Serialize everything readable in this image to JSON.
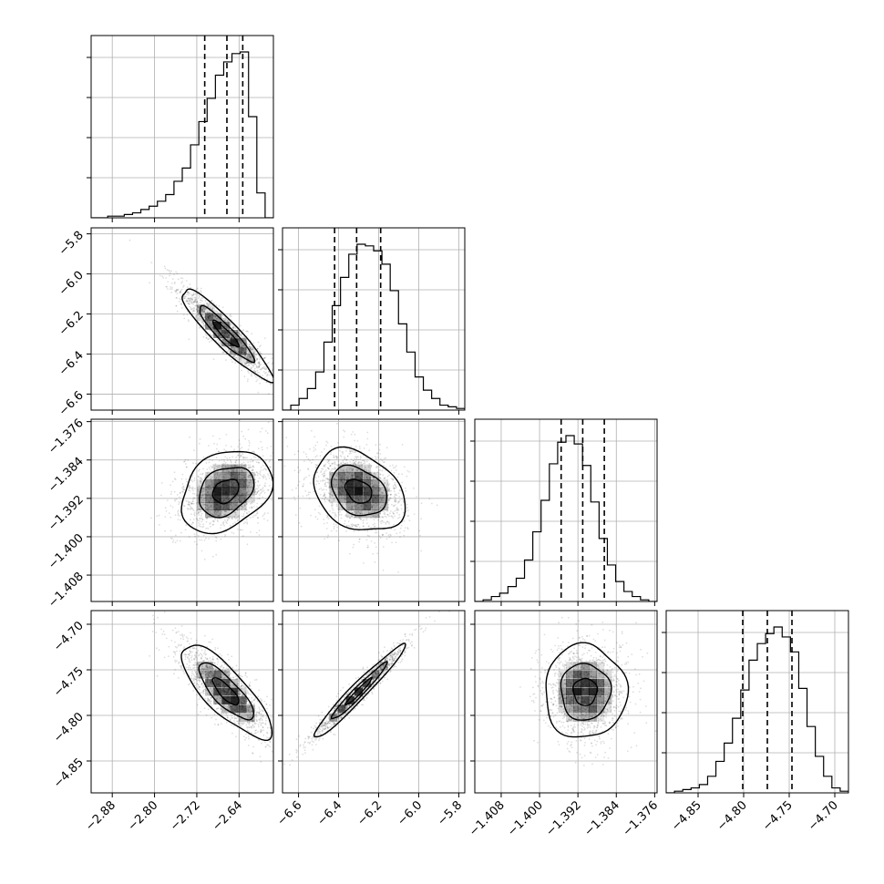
{
  "chart_data": {
    "type": "corner",
    "grid": true,
    "hist_quantile_lines": "dashed",
    "parameters": [
      {
        "index": 0,
        "range": [
          -2.92,
          -2.575
        ],
        "ticks": [
          -2.88,
          -2.8,
          -2.72,
          -2.64
        ],
        "tick_labels": [
          "−2.88",
          "−2.80",
          "−2.72",
          "−2.64"
        ],
        "quantiles": [
          -2.705,
          -2.663,
          -2.633
        ],
        "histogram": [
          0,
          0,
          0.01,
          0.01,
          0.02,
          0.03,
          0.05,
          0.07,
          0.1,
          0.14,
          0.22,
          0.3,
          0.44,
          0.58,
          0.72,
          0.86,
          0.94,
          0.99,
          1.0,
          0.61,
          0.15,
          0
        ]
      },
      {
        "index": 1,
        "range": [
          -6.68,
          -5.77
        ],
        "ticks": [
          -6.6,
          -6.4,
          -6.2,
          -6.0,
          -5.8
        ],
        "tick_labels": [
          "−6.6",
          "−6.4",
          "−6.2",
          "−6.0",
          "−5.8"
        ],
        "quantiles": [
          -6.42,
          -6.31,
          -6.19
        ],
        "histogram": [
          0,
          0.03,
          0.07,
          0.13,
          0.23,
          0.41,
          0.63,
          0.8,
          0.94,
          1.0,
          0.99,
          0.96,
          0.88,
          0.72,
          0.52,
          0.35,
          0.2,
          0.12,
          0.07,
          0.03,
          0.02,
          0.01
        ]
      },
      {
        "index": 2,
        "range": [
          -1.4135,
          -1.3755
        ],
        "ticks": [
          -1.408,
          -1.4,
          -1.392,
          -1.384,
          -1.376
        ],
        "tick_labels": [
          "−1.408",
          "−1.400",
          "−1.392",
          "−1.384",
          "−1.376"
        ],
        "quantiles": [
          -1.3955,
          -1.391,
          -1.3865
        ],
        "histogram": [
          0,
          0.01,
          0.03,
          0.05,
          0.09,
          0.14,
          0.25,
          0.42,
          0.61,
          0.83,
          0.96,
          1.0,
          0.95,
          0.82,
          0.6,
          0.38,
          0.22,
          0.12,
          0.06,
          0.03,
          0.01,
          0
        ]
      },
      {
        "index": 3,
        "range": [
          -4.885,
          -4.685
        ],
        "ticks": [
          -4.85,
          -4.8,
          -4.75,
          -4.7
        ],
        "tick_labels": [
          "−4.85",
          "−4.80",
          "−4.75",
          "−4.70"
        ],
        "quantiles": [
          -4.801,
          -4.774,
          -4.747
        ],
        "histogram": [
          0,
          0.01,
          0.02,
          0.03,
          0.05,
          0.1,
          0.19,
          0.3,
          0.45,
          0.62,
          0.8,
          0.9,
          0.96,
          1.0,
          0.94,
          0.85,
          0.63,
          0.4,
          0.22,
          0.1,
          0.03,
          0.01
        ]
      }
    ],
    "pairs": [
      {
        "x": 0,
        "y": 1,
        "mean": [
          -2.665,
          -6.3
        ],
        "std": [
          0.045,
          0.12
        ],
        "corr": -0.92
      },
      {
        "x": 0,
        "y": 2,
        "mean": [
          -2.665,
          -1.3905
        ],
        "std": [
          0.045,
          0.0045
        ],
        "corr": 0.3
      },
      {
        "x": 1,
        "y": 2,
        "mean": [
          -6.3,
          -1.3905
        ],
        "std": [
          0.12,
          0.0045
        ],
        "corr": -0.3
      },
      {
        "x": 0,
        "y": 3,
        "mean": [
          -2.665,
          -4.774
        ],
        "std": [
          0.045,
          0.027
        ],
        "corr": -0.8
      },
      {
        "x": 1,
        "y": 3,
        "mean": [
          -6.3,
          -4.774
        ],
        "std": [
          0.12,
          0.027
        ],
        "corr": 0.97
      },
      {
        "x": 2,
        "y": 3,
        "mean": [
          -1.3905,
          -4.774
        ],
        "std": [
          0.0045,
          0.027
        ],
        "corr": 0.0
      }
    ]
  }
}
